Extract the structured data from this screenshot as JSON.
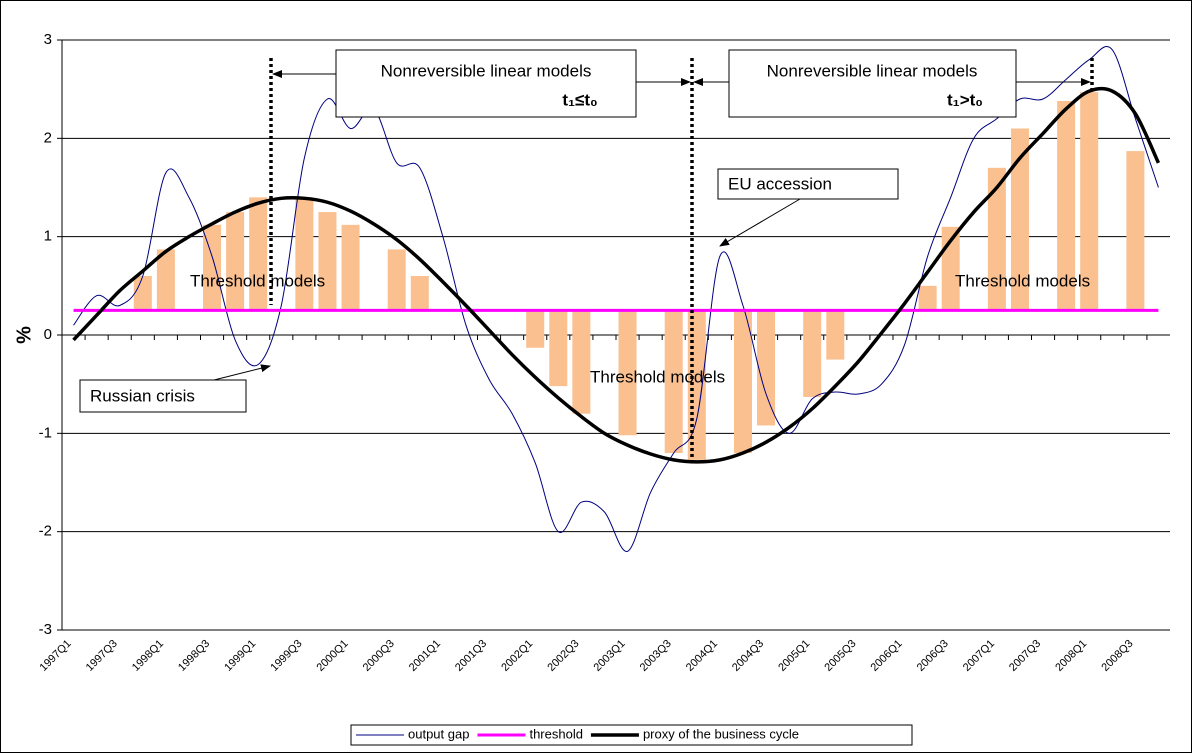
{
  "chart_data": {
    "type": "line",
    "ylabel": "%",
    "categories": [
      "1997Q1",
      null,
      "1997Q3",
      null,
      "1998Q1",
      null,
      "1998Q3",
      null,
      "1999Q1",
      null,
      "1999Q3",
      null,
      "2000Q1",
      null,
      "2000Q3",
      null,
      "2001Q1",
      null,
      "2001Q3",
      null,
      "2002Q1",
      null,
      "2002Q3",
      null,
      "2003Q1",
      null,
      "2003Q3",
      null,
      "2004Q1",
      null,
      "2004Q3",
      null,
      "2005Q1",
      null,
      "2005Q3",
      null,
      "2006Q1",
      null,
      "2006Q3",
      null,
      "2007Q1",
      null,
      "2007Q3",
      null,
      "2008Q1",
      null,
      "2008Q3",
      null
    ],
    "ylim": [
      -3,
      3
    ],
    "yticks": [
      -3,
      -2,
      -1,
      0,
      1,
      2,
      3
    ],
    "grid": true,
    "legend": "bottom",
    "series": [
      {
        "name": "output gap",
        "color": "#000080",
        "width": 1,
        "values": [
          0.1,
          0.4,
          0.3,
          0.6,
          1.65,
          1.4,
          0.8,
          -0.05,
          -0.3,
          0.3,
          1.8,
          2.4,
          2.1,
          2.3,
          1.75,
          1.7,
          1.0,
          0.1,
          -0.45,
          -0.8,
          -1.3,
          -2.0,
          -1.7,
          -1.8,
          -2.2,
          -1.6,
          -1.2,
          -0.85,
          0.8,
          0.3,
          -0.6,
          -1.0,
          -0.65,
          -0.58,
          -0.6,
          -0.5,
          -0.1,
          0.8,
          1.4,
          2.0,
          2.2,
          2.4,
          2.4,
          2.6,
          2.8,
          2.9,
          2.2,
          1.5
        ]
      },
      {
        "name": "threshold",
        "color": "#ff00ff",
        "width": 3,
        "values": [
          0.25,
          0.25,
          0.25,
          0.25,
          0.25,
          0.25,
          0.25,
          0.25,
          0.25,
          0.25,
          0.25,
          0.25,
          0.25,
          0.25,
          0.25,
          0.25,
          0.25,
          0.25,
          0.25,
          0.25,
          0.25,
          0.25,
          0.25,
          0.25,
          0.25,
          0.25,
          0.25,
          0.25,
          0.25,
          0.25,
          0.25,
          0.25,
          0.25,
          0.25,
          0.25,
          0.25,
          0.25,
          0.25,
          0.25,
          0.25,
          0.25,
          0.25,
          0.25,
          0.25,
          0.25,
          0.25,
          0.25,
          0.25
        ]
      },
      {
        "name": "proxy of the business cycle",
        "color": "#000000",
        "width": 3.5,
        "values": [
          -0.05,
          0.2,
          0.45,
          0.65,
          0.85,
          1.0,
          1.13,
          1.25,
          1.34,
          1.39,
          1.39,
          1.35,
          1.26,
          1.13,
          0.97,
          0.77,
          0.54,
          0.3,
          0.05,
          -0.2,
          -0.43,
          -0.64,
          -0.83,
          -1.0,
          -1.12,
          -1.21,
          -1.27,
          -1.29,
          -1.27,
          -1.2,
          -1.09,
          -0.94,
          -0.75,
          -0.52,
          -0.27,
          0.02,
          0.32,
          0.64,
          0.96,
          1.25,
          1.5,
          1.8,
          2.05,
          2.3,
          2.48,
          2.48,
          2.25,
          1.75
        ]
      }
    ],
    "bars": {
      "color": "#fac090",
      "values": [
        null,
        null,
        null,
        0.6,
        0.87,
        null,
        1.12,
        1.25,
        1.4,
        null,
        1.4,
        1.25,
        1.12,
        null,
        0.87,
        0.6,
        null,
        null,
        null,
        null,
        -0.13,
        -0.52,
        -0.8,
        null,
        -1.02,
        null,
        -1.2,
        -1.27,
        null,
        -1.2,
        -0.92,
        null,
        -0.63,
        -0.25,
        null,
        null,
        null,
        0.5,
        1.1,
        null,
        1.7,
        2.1,
        null,
        2.38,
        2.47,
        null,
        1.87,
        null
      ]
    },
    "annotations": [
      "Nonreversible linear models",
      "t₁≤t₀",
      "Nonreversible linear models",
      "t₁>t₀",
      "EU accession",
      "Russian crisis",
      "Threshold models",
      "Threshold models",
      "Threshold models"
    ]
  }
}
